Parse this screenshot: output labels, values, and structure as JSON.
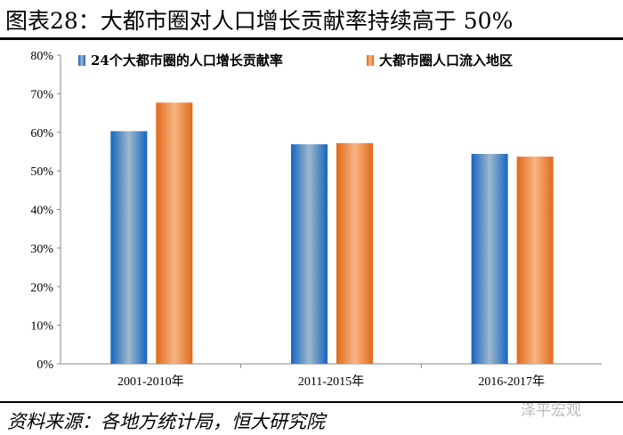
{
  "title": "图表28：大都市圈对人口增长贡献率持续高于 50%",
  "source": "资料来源：各地方统计局，恒大研究院",
  "watermark": "泽平宏观",
  "chart_data": {
    "type": "bar",
    "title": "图表28：大都市圈对人口增长贡献率持续高于 50%",
    "categories": [
      "2001-2010年",
      "2011-2015年",
      "2016-2017年"
    ],
    "series": [
      {
        "name": "24个大都市圈的人口增长贡献率",
        "values": [
          60.3,
          56.9,
          54.4
        ],
        "color": "#1f6fc0"
      },
      {
        "name": "大都市圈人口流入地区",
        "values": [
          67.7,
          57.2,
          53.7
        ],
        "color": "#e8731f"
      }
    ],
    "yticks": [
      "0%",
      "10%",
      "20%",
      "30%",
      "40%",
      "50%",
      "60%",
      "70%",
      "80%"
    ],
    "ylim": [
      0,
      80
    ],
    "grid": false,
    "legend": "top"
  }
}
